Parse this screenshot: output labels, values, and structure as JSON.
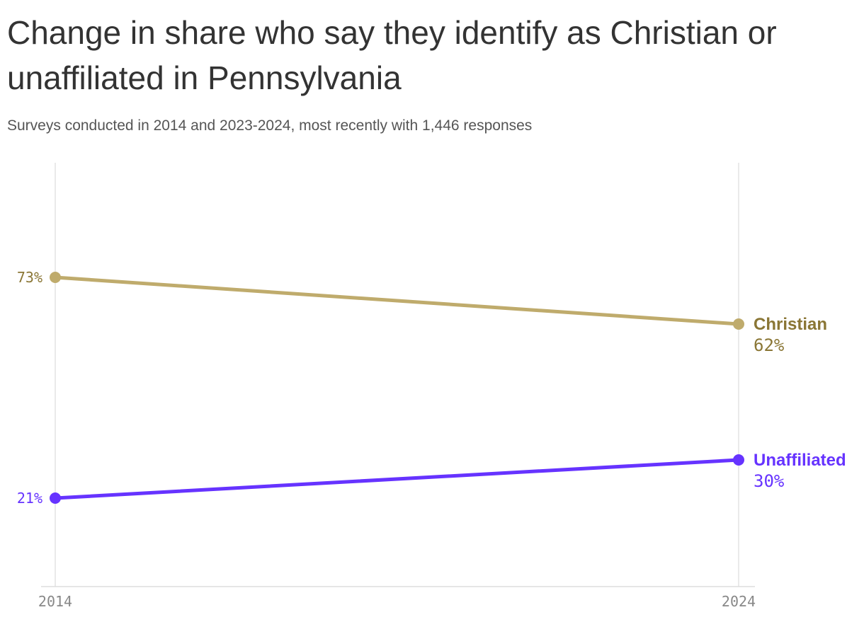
{
  "title": "Change in share who say they identify as Christian or unaffiliated in Pennsylvania",
  "subtitle": "Surveys conducted in 2014 and 2023-2024, most recently with 1,446 responses",
  "chart_data": {
    "type": "line",
    "x": [
      "2014",
      "2024"
    ],
    "ylim": [
      0,
      100
    ],
    "grid": "vertical lines at each x",
    "series": [
      {
        "name": "Christian",
        "values": [
          73,
          62
        ],
        "labels": [
          "73%",
          "62%"
        ],
        "color": "#bfab6c",
        "label_color": "#8a7635"
      },
      {
        "name": "Unaffiliated",
        "values": [
          21,
          30
        ],
        "labels": [
          "21%",
          "30%"
        ],
        "color": "#6633ff",
        "label_color": "#6633ff"
      }
    ]
  }
}
